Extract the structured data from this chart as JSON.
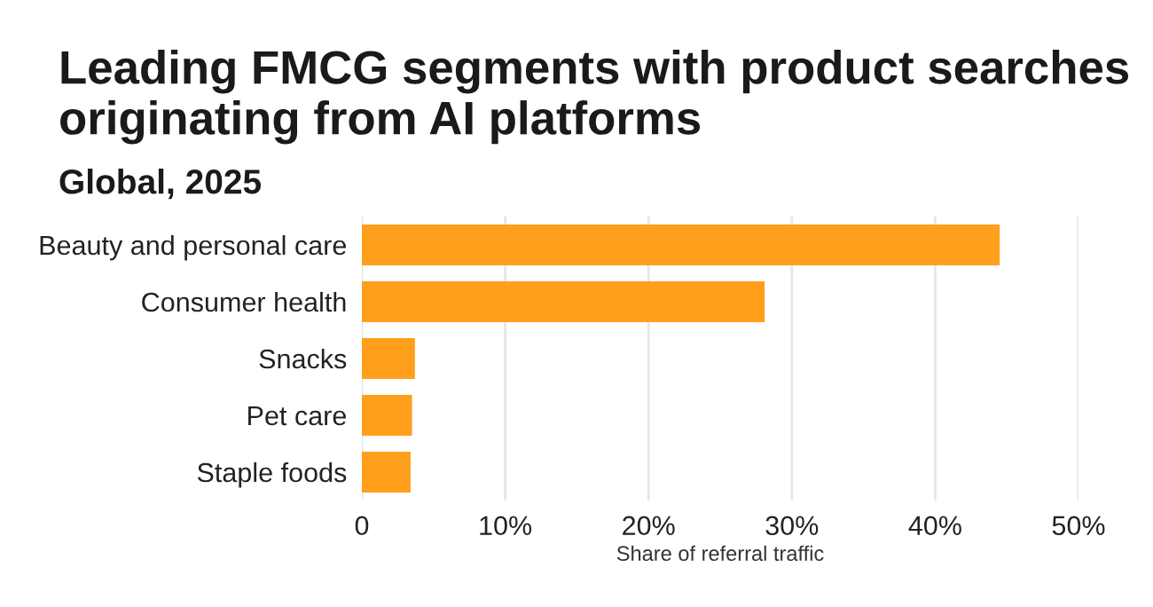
{
  "chart_data": {
    "type": "bar",
    "orientation": "horizontal",
    "title": "Leading FMCG segments with product searches originating from AI platforms",
    "subtitle": "Global, 2025",
    "xlabel": "Share of referral traffic",
    "categories": [
      "Beauty and personal care",
      "Consumer health",
      "Snacks",
      "Pet care",
      "Staple foods"
    ],
    "values": [
      44.5,
      28.1,
      3.7,
      3.5,
      3.4
    ],
    "color": "#ff9f1c",
    "xlim": [
      0,
      50
    ],
    "xticks": [
      {
        "value": 0,
        "label": "0"
      },
      {
        "value": 10,
        "label": "10%"
      },
      {
        "value": 20,
        "label": "20%"
      },
      {
        "value": 30,
        "label": "30%"
      },
      {
        "value": 40,
        "label": "40%"
      },
      {
        "value": 50,
        "label": "50%"
      }
    ],
    "grid": "x"
  }
}
